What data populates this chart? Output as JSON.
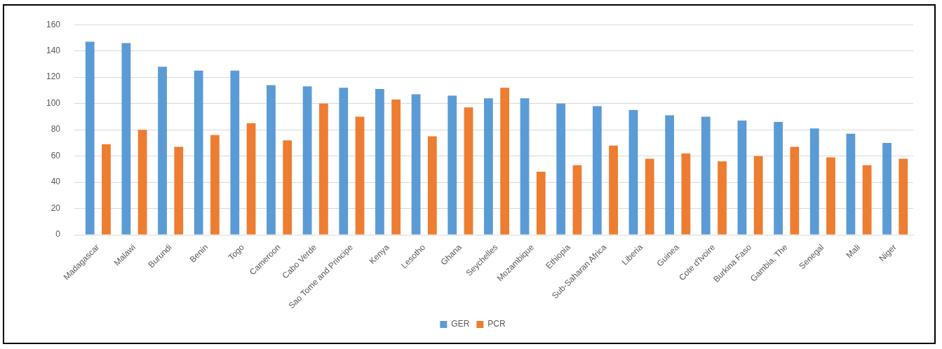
{
  "chart_data": {
    "type": "bar",
    "categories": [
      "Madagascar",
      "Malawi",
      "Burundi",
      "Benin",
      "Togo",
      "Cameroon",
      "Cabo Verde",
      "Sao Tome and Principe",
      "Kenya",
      "Lesotho",
      "Ghana",
      "Seychelles",
      "Mozambique",
      "Ethiopia",
      "Sub-Saharan Africa",
      "Liberia",
      "Guinea",
      "Cote d'Ivoire",
      "Burkina Faso",
      "Gambia, The",
      "Senegal",
      "Mali",
      "Niger"
    ],
    "series": [
      {
        "name": "GER",
        "color": "#5b9bd5",
        "values": [
          147,
          146,
          128,
          125,
          125,
          114,
          113,
          112,
          111,
          107,
          106,
          104,
          104,
          100,
          98,
          95,
          91,
          90,
          87,
          86,
          81,
          77,
          70
        ]
      },
      {
        "name": "PCR",
        "color": "#ed7d31",
        "values": [
          69,
          80,
          67,
          76,
          85,
          72,
          100,
          90,
          103,
          75,
          97,
          112,
          48,
          53,
          68,
          58,
          62,
          56,
          60,
          67,
          59,
          53,
          58
        ]
      }
    ],
    "ylim": [
      0,
      160
    ],
    "yticks": [
      0,
      20,
      40,
      60,
      80,
      100,
      120,
      140,
      160
    ],
    "grid": "y",
    "legend": "bottom"
  }
}
